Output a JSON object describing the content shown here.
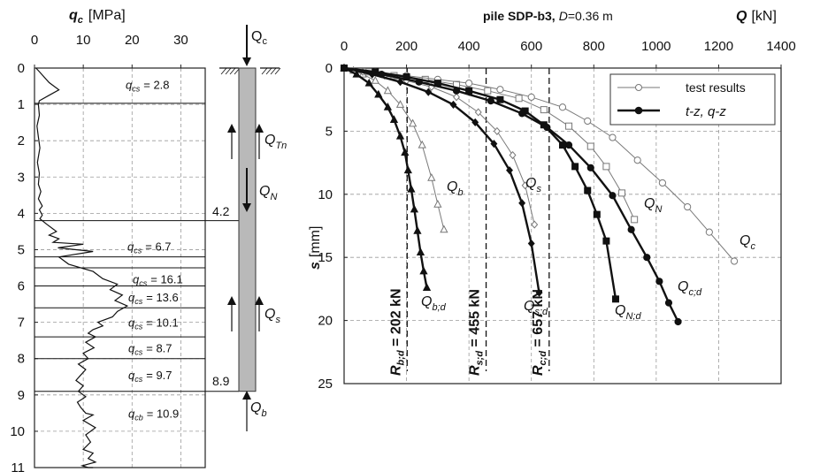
{
  "left_panel": {
    "x_title_symbol": "q",
    "x_title_sub": "c",
    "x_title_unit": "[MPa]",
    "x_ticks": [
      "0",
      "10",
      "20",
      "30"
    ],
    "y_ticks": [
      "0",
      "1",
      "2",
      "3",
      "4",
      "5",
      "6",
      "7",
      "8",
      "9",
      "10",
      "11"
    ],
    "layers": [
      {
        "sym": "q",
        "sub": "cs",
        "value": "= 2.8"
      },
      {
        "sym": "q",
        "sub": "cs",
        "value": "= 6.7"
      },
      {
        "sym": "q",
        "sub": "cs",
        "value": "= 16.1"
      },
      {
        "sym": "q",
        "sub": "cs",
        "value": "= 13.6"
      },
      {
        "sym": "q",
        "sub": "cs",
        "value": "= 10.1"
      },
      {
        "sym": "q",
        "sub": "cs",
        "value": "= 8.7"
      },
      {
        "sym": "q",
        "sub": "cs",
        "value": "= 9.7"
      },
      {
        "sym": "q",
        "sub": "cb",
        "value": "= 10.9"
      }
    ],
    "pile_labels": {
      "top_depth": "4.2",
      "bottom_depth": "8.9",
      "Qc": {
        "sym": "Q",
        "sub": "c"
      },
      "QTn": {
        "sym": "Q",
        "sub": "Tn"
      },
      "QN": {
        "sym": "Q",
        "sub": "N"
      },
      "Qs": {
        "sym": "Q",
        "sub": "s"
      },
      "Qb": {
        "sym": "Q",
        "sub": "b"
      }
    }
  },
  "right_panel": {
    "title_bold": "pile SDP-b3,",
    "title_D": "D",
    "title_rest": "=0.36 m",
    "x_title_symbol": "Q",
    "x_title_unit": "[kN]",
    "y_title_symbol": "s",
    "y_title_unit": "[mm]",
    "legend": {
      "test": "test results",
      "model": "t-z,  q-z"
    },
    "resistance_labels": [
      {
        "main": "R",
        "sub": "b;d",
        "rest": " = 202 kN"
      },
      {
        "main": "R",
        "sub": "s;d",
        "rest": " = 455 kN"
      },
      {
        "main": "R",
        "sub": "c;d",
        "rest": " = 657 kN"
      }
    ],
    "curve_labels": {
      "Qb": {
        "sym": "Q",
        "sub": "b"
      },
      "Qs": {
        "sym": "Q",
        "sub": "s"
      },
      "QN": {
        "sym": "Q",
        "sub": "N"
      },
      "Qc": {
        "sym": "Q",
        "sub": "c"
      },
      "Qbd": {
        "sym": "Q",
        "sub": "b;d"
      },
      "Qsd": {
        "sym": "Q",
        "sub": "s;d"
      },
      "QNd": {
        "sym": "Q",
        "sub": "N;d"
      },
      "Qcd": {
        "sym": "Q",
        "sub": "c;d"
      }
    }
  },
  "chart_data": [
    {
      "type": "line",
      "title": "",
      "xlabel": "qc [MPa]",
      "ylabel": "",
      "xlim": [
        0,
        35
      ],
      "ylim": [
        11,
        0
      ],
      "x_ticks": [
        0,
        10,
        20,
        30
      ],
      "y_ticks": [
        0,
        1,
        2,
        3,
        4,
        5,
        6,
        7,
        8,
        9,
        10,
        11
      ],
      "grid": true,
      "layer_boundaries": [
        0,
        0.97,
        4.2,
        5.2,
        5.5,
        6.0,
        6.6,
        7.4,
        8.0,
        8.9
      ],
      "layer_values": [
        {
          "symbol": "qcs",
          "value": 2.8,
          "depth": 0.45
        },
        {
          "symbol": "qcs",
          "value": 6.7,
          "depth": 4.9
        },
        {
          "symbol": "qcs",
          "value": 16.1,
          "depth": 5.8
        },
        {
          "symbol": "qcs",
          "value": 13.6,
          "depth": 6.3
        },
        {
          "symbol": "qcs",
          "value": 10.1,
          "depth": 7.0
        },
        {
          "symbol": "qcs",
          "value": 8.7,
          "depth": 7.7
        },
        {
          "symbol": "qcs",
          "value": 9.7,
          "depth": 8.45
        },
        {
          "symbol": "qcb",
          "value": 10.9,
          "depth": 9.5
        }
      ],
      "pile": {
        "head_depth": 0,
        "toe_depth": 8.9,
        "neutral_depth": 4.2
      },
      "series": [
        {
          "x": [
            0.3,
            1,
            3,
            5,
            3,
            1,
            0.8,
            1.0,
            0.5,
            0.8,
            1.1,
            0.6,
            1.0,
            0.8,
            1.3,
            0.8,
            1.6,
            1.0,
            1.6,
            1.1,
            2.5,
            4.5,
            3.0,
            5.0,
            3.8,
            10.0,
            4.8,
            12.0,
            5.0,
            7.0,
            12.0,
            14.0,
            17.0,
            15.5,
            18.0,
            16.5,
            19.0,
            17.0,
            16.0,
            13.0,
            14.0,
            12.0,
            11.0,
            12.5,
            10.5,
            12.2,
            10.0,
            11.0,
            9.0,
            10.5,
            9.5,
            8.5,
            10.0,
            9.0,
            10.5,
            8.8,
            9.5,
            10.5,
            12.0,
            10.0,
            12.5,
            10.5,
            11.5,
            10.0,
            12.0,
            11.0,
            12.5,
            9.8,
            11.0,
            12.0
          ],
          "y": [
            0.0,
            0.1,
            0.4,
            0.6,
            0.75,
            0.9,
            1.0,
            1.3,
            1.6,
            1.9,
            2.2,
            2.6,
            2.9,
            3.2,
            3.4,
            3.6,
            3.8,
            3.9,
            4.05,
            4.15,
            4.3,
            4.5,
            4.6,
            4.7,
            4.8,
            4.85,
            4.95,
            5.05,
            5.2,
            5.4,
            5.6,
            5.8,
            5.95,
            6.1,
            6.25,
            6.4,
            6.55,
            6.7,
            6.85,
            7.0,
            7.1,
            7.2,
            7.3,
            7.4,
            7.55,
            7.7,
            7.85,
            8.0,
            8.15,
            8.3,
            8.45,
            8.6,
            8.75,
            8.9,
            9.05,
            9.2,
            9.35,
            9.5,
            9.55,
            9.7,
            9.9,
            10.1,
            10.3,
            10.5,
            10.6,
            10.75,
            10.85,
            10.95,
            11.0,
            11.0
          ]
        }
      ]
    },
    {
      "type": "line",
      "title": "pile SDP-b3, D=0.36 m",
      "xlabel": "Q [kN]",
      "ylabel": "s [mm]",
      "xlim": [
        0,
        1400
      ],
      "ylim": [
        25,
        0
      ],
      "x_ticks": [
        0,
        200,
        400,
        600,
        800,
        1000,
        1200,
        1400
      ],
      "y_ticks": [
        0,
        5,
        10,
        15,
        20,
        25
      ],
      "grid": true,
      "legend": "top-right",
      "reference_lines": [
        {
          "x": 202,
          "label": "Rb;d = 202 kN"
        },
        {
          "x": 455,
          "label": "Rs;d = 455 kN"
        },
        {
          "x": 657,
          "label": "Rc;d = 657 kN"
        }
      ],
      "series": [
        {
          "name": "Qb (test results)",
          "marker": "triangle-open",
          "x": [
            0,
            30,
            60,
            100,
            140,
            180,
            220,
            250,
            280,
            300,
            320
          ],
          "y": [
            0,
            0.2,
            0.5,
            1.0,
            1.8,
            2.9,
            4.4,
            6.1,
            8.7,
            10.8,
            12.8
          ]
        },
        {
          "name": "Qs (test results)",
          "marker": "diamond-open",
          "x": [
            0,
            60,
            130,
            200,
            280,
            360,
            430,
            490,
            540,
            580,
            610
          ],
          "y": [
            0,
            0.3,
            0.6,
            1.0,
            1.5,
            2.3,
            3.5,
            5.0,
            6.9,
            9.3,
            12.4
          ]
        },
        {
          "name": "QN (test results)",
          "marker": "square-open",
          "x": [
            0,
            80,
            160,
            260,
            360,
            460,
            560,
            640,
            720,
            790,
            840,
            890,
            930
          ],
          "y": [
            0,
            0.3,
            0.6,
            0.9,
            1.3,
            1.8,
            2.4,
            3.3,
            4.6,
            6.2,
            7.8,
            9.9,
            12.0
          ]
        },
        {
          "name": "Qc (test results)",
          "marker": "circle-open",
          "x": [
            0,
            100,
            200,
            300,
            400,
            500,
            600,
            700,
            780,
            860,
            940,
            1020,
            1100,
            1170,
            1250
          ],
          "y": [
            0,
            0.3,
            0.6,
            0.9,
            1.2,
            1.7,
            2.3,
            3.1,
            4.2,
            5.5,
            7.3,
            9.1,
            11.0,
            13.0,
            15.3
          ]
        },
        {
          "name": "Qb;d (t-z, q-z)",
          "marker": "triangle-filled",
          "x": [
            0,
            40,
            80,
            110,
            140,
            160,
            180,
            195,
            205,
            215,
            225,
            235,
            245,
            255,
            265
          ],
          "y": [
            0,
            0.5,
            1.2,
            2.1,
            3.1,
            4.1,
            5.4,
            6.7,
            8.1,
            9.6,
            11.2,
            12.9,
            14.6,
            16.1,
            17.4
          ]
        },
        {
          "name": "Qs;d (t-z, q-z)",
          "marker": "diamond-filled",
          "x": [
            0,
            90,
            180,
            270,
            350,
            420,
            480,
            530,
            570,
            600,
            625
          ],
          "y": [
            0,
            0.5,
            1.1,
            1.9,
            2.9,
            4.3,
            6.0,
            8.1,
            10.7,
            13.9,
            17.8
          ]
        },
        {
          "name": "QN;d (t-z, q-z)",
          "marker": "square-filled",
          "x": [
            0,
            100,
            200,
            300,
            400,
            500,
            580,
            640,
            700,
            740,
            780,
            810,
            840,
            870
          ],
          "y": [
            0,
            0.3,
            0.7,
            1.2,
            1.8,
            2.5,
            3.4,
            4.5,
            6.1,
            7.8,
            9.7,
            11.6,
            13.7,
            18.3
          ]
        },
        {
          "name": "Qc;d (t-z, q-z)",
          "marker": "circle-filled",
          "x": [
            0,
            120,
            240,
            360,
            470,
            570,
            650,
            720,
            790,
            860,
            920,
            970,
            1010,
            1040,
            1070
          ],
          "y": [
            0,
            0.5,
            1.1,
            1.8,
            2.6,
            3.6,
            4.7,
            6.1,
            7.9,
            10.1,
            12.8,
            15.0,
            16.9,
            18.6,
            20.1
          ]
        }
      ]
    }
  ]
}
